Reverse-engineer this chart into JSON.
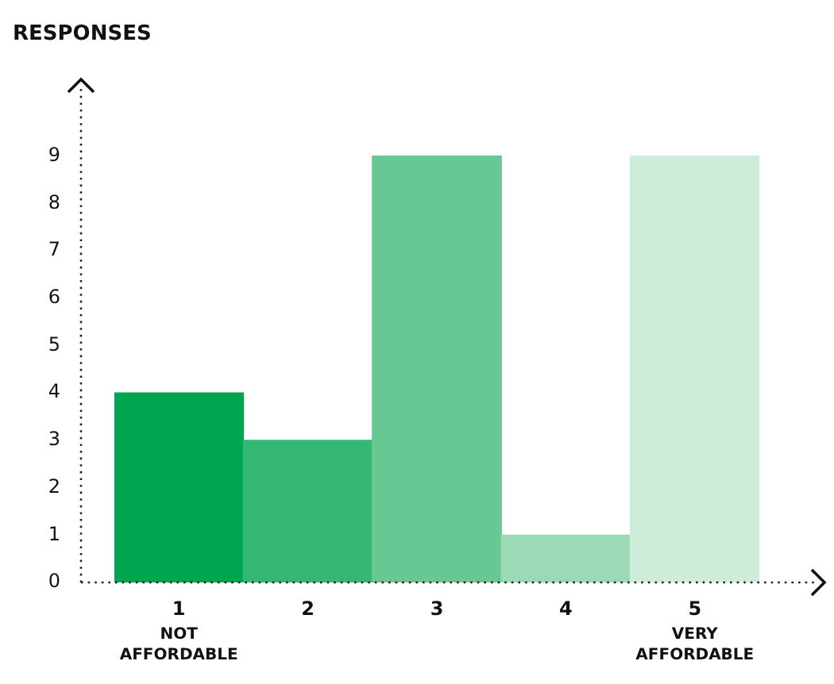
{
  "chart_data": {
    "type": "bar",
    "title": "RESPONSES",
    "categories": [
      "1",
      "2",
      "3",
      "4",
      "5"
    ],
    "values": [
      4,
      3,
      9,
      1,
      9
    ],
    "colors": [
      "#00a54f",
      "#36b875",
      "#68c894",
      "#9bdab5",
      "#cdecda"
    ],
    "ylim": [
      0,
      10.5
    ],
    "yticks": [
      0,
      1,
      2,
      3,
      4,
      5,
      6,
      7,
      8,
      9
    ],
    "grid": false,
    "annotations": [
      "NOT AFFORDABLE",
      "VERY AFFORDABLE"
    ]
  }
}
